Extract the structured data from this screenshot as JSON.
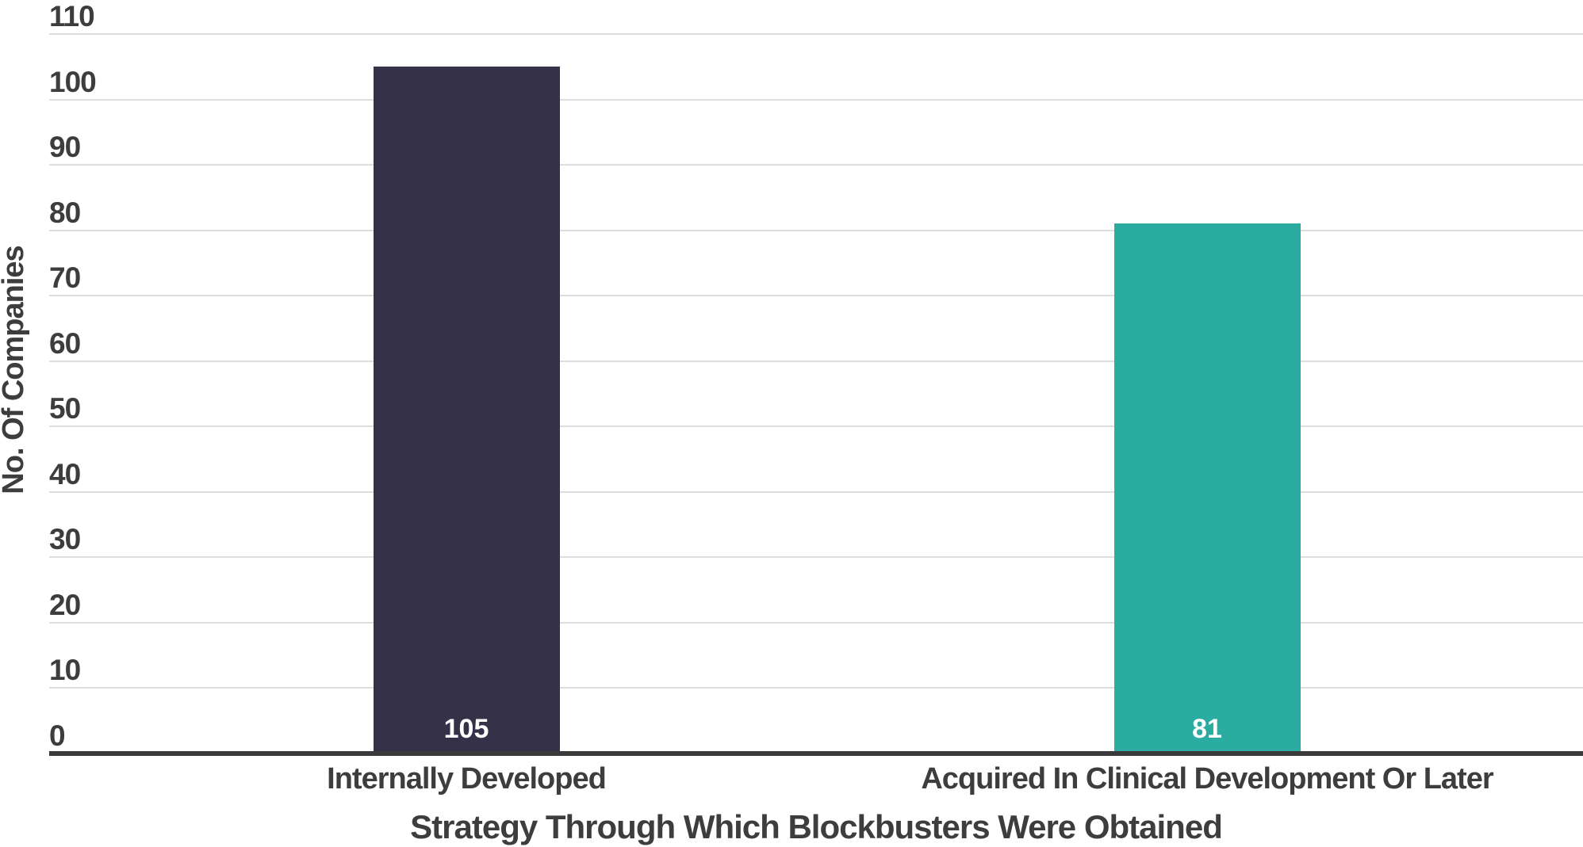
{
  "figure": {
    "background": "#ffffff"
  },
  "chart_data": {
    "type": "bar",
    "title": "",
    "xlabel": "Strategy Through Which Blockbusters Were Obtained",
    "ylabel": "No. Of Companies",
    "categories": [
      "Internally Developed",
      "Acquired In Clinical Development Or Later"
    ],
    "values": [
      105,
      81
    ],
    "value_labels": [
      "105",
      "81"
    ],
    "series": [
      {
        "name": "No. Of Companies",
        "values": [
          105,
          81
        ]
      }
    ],
    "bar_colors": [
      "#343149",
      "#2aaca1"
    ],
    "value_label_color": "#ffffff",
    "ylim": [
      0,
      110
    ],
    "ytick_step": 10,
    "yticks": [
      0,
      10,
      20,
      30,
      40,
      50,
      60,
      70,
      80,
      90,
      100,
      110
    ],
    "grid": "horizontal",
    "legend_position": "none",
    "colors": {
      "gridline": "#dedede",
      "axis_line": "#3a3a3a",
      "tick_label": "#3d3d3d",
      "category_label": "#3d3d3d",
      "axis_title": "#3d3d3d"
    }
  }
}
